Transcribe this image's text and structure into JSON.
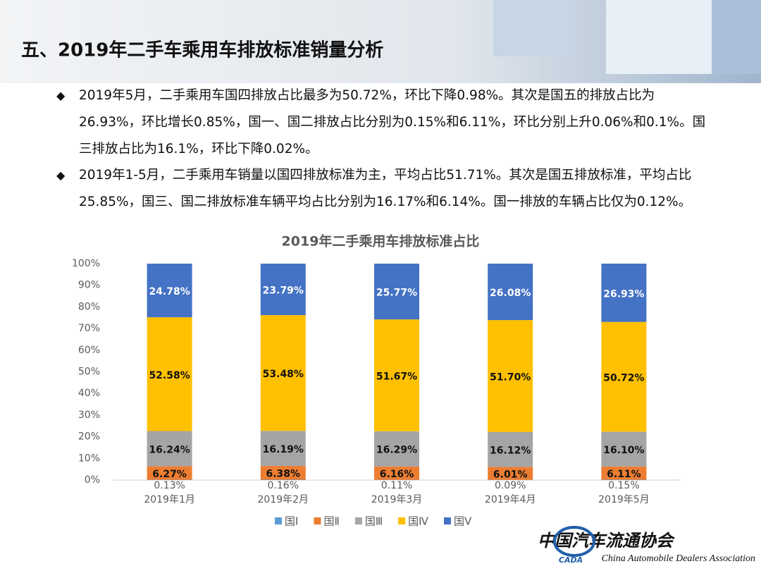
{
  "header": {
    "title": "五、2019年二手车乘用车排放标准销量分析"
  },
  "bullets": [
    "2019年5月，二手乘用车国四排放占比最多为50.72%，环比下降0.98%。其次是国五的排放占比为26.93%，环比增长0.85%，国一、国二排放占比分别为0.15%和6.11%，环比分别上升0.06%和0.1%。国三排放占比为16.1%，环比下降0.02%。",
    "2019年1-5月，二手乘用车销量以国四排放标准为主，平均占比51.71%。其次是国五排放标准，平均占比25.85%，国三、国二排放标准车辆平均占比分别为16.17%和6.14%。国一排放的车辆占比仅为0.12%。"
  ],
  "logo": {
    "name": "中国汽车流通协会",
    "english": "China Automobile Dealers Association",
    "abbr": "CADA"
  },
  "chart_data": {
    "type": "stacked_bar",
    "title": "2019年二手乘用车排放标准占比",
    "categories": [
      "2019年1月",
      "2019年2月",
      "2019年3月",
      "2019年4月",
      "2019年5月"
    ],
    "series": [
      {
        "name": "国Ⅰ",
        "color": "#5b9bd5",
        "values": [
          0.13,
          0.16,
          0.11,
          0.09,
          0.15
        ],
        "value_labels": [
          "0.13%",
          "0.16%",
          "0.11%",
          "0.09%",
          "0.15%"
        ]
      },
      {
        "name": "国Ⅱ",
        "color": "#ed7d31",
        "values": [
          6.27,
          6.38,
          6.16,
          6.01,
          6.11
        ],
        "value_labels": [
          "6.27%",
          "6.38%",
          "6.16%",
          "6.01%",
          "6.11%"
        ]
      },
      {
        "name": "国Ⅲ",
        "color": "#a5a5a5",
        "values": [
          16.24,
          16.19,
          16.29,
          16.12,
          16.1
        ],
        "value_labels": [
          "16.24%",
          "16.19%",
          "16.29%",
          "16.12%",
          "16.10%"
        ]
      },
      {
        "name": "国Ⅳ",
        "color": "#ffc000",
        "values": [
          52.58,
          53.48,
          51.67,
          51.7,
          50.72
        ],
        "value_labels": [
          "52.58%",
          "53.48%",
          "51.67%",
          "51.70%",
          "50.72%"
        ]
      },
      {
        "name": "国Ⅴ",
        "color": "#4472c4",
        "values": [
          24.78,
          23.79,
          25.77,
          26.08,
          26.93
        ],
        "value_labels": [
          "24.78%",
          "23.79%",
          "25.77%",
          "26.08%",
          "26.93%"
        ]
      }
    ],
    "ylim": [
      0,
      100
    ],
    "yticks": [
      {
        "value": 0,
        "label": "0%"
      },
      {
        "value": 10,
        "label": "10%"
      },
      {
        "value": 20,
        "label": "20%"
      },
      {
        "value": 30,
        "label": "30%"
      },
      {
        "value": 40,
        "label": "40%"
      },
      {
        "value": 50,
        "label": "50%"
      },
      {
        "value": 60,
        "label": "60%"
      },
      {
        "value": 70,
        "label": "70%"
      },
      {
        "value": 80,
        "label": "80%"
      },
      {
        "value": 90,
        "label": "90%"
      },
      {
        "value": 100,
        "label": "100%"
      }
    ],
    "grid": false,
    "legend": "bottom"
  }
}
